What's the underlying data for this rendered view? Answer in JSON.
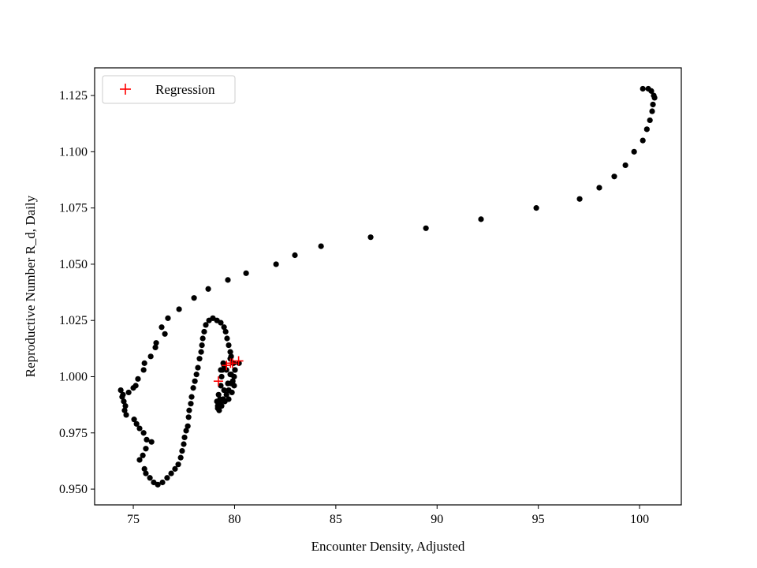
{
  "chart_data": {
    "type": "scatter",
    "title": "",
    "xlabel": "Encounter Density, Adjusted",
    "ylabel": "Reproductive Number R_d, Daily",
    "xlim": [
      73.09,
      102.06
    ],
    "ylim": [
      0.943,
      1.1373
    ],
    "xticks": [
      75,
      80,
      85,
      90,
      95,
      100
    ],
    "xtick_labels": [
      "75",
      "80",
      "85",
      "90",
      "95",
      "100"
    ],
    "yticks": [
      0.95,
      0.975,
      1.0,
      1.025,
      1.05,
      1.075,
      1.1,
      1.125
    ],
    "ytick_labels": [
      "0.950",
      "0.975",
      "1.000",
      "1.025",
      "1.050",
      "1.075",
      "1.100",
      "1.125"
    ],
    "grid": false,
    "legend": {
      "placement": "top-left",
      "entries": [
        "Regression"
      ]
    },
    "series": [
      {
        "name": "data",
        "marker": "circle",
        "color": "#000000",
        "points": [
          [
            100.16,
            1.128
          ],
          [
            100.43,
            1.128
          ],
          [
            100.58,
            1.127
          ],
          [
            100.7,
            1.125
          ],
          [
            100.74,
            1.124
          ],
          [
            100.66,
            1.121
          ],
          [
            100.62,
            1.118
          ],
          [
            100.51,
            1.114
          ],
          [
            100.36,
            1.11
          ],
          [
            100.16,
            1.105
          ],
          [
            99.73,
            1.1
          ],
          [
            99.3,
            1.094
          ],
          [
            98.75,
            1.089
          ],
          [
            98.01,
            1.084
          ],
          [
            97.04,
            1.079
          ],
          [
            94.9,
            1.075
          ],
          [
            92.17,
            1.07
          ],
          [
            89.45,
            1.066
          ],
          [
            86.72,
            1.062
          ],
          [
            84.27,
            1.058
          ],
          [
            82.98,
            1.054
          ],
          [
            82.05,
            1.05
          ],
          [
            80.57,
            1.046
          ],
          [
            79.67,
            1.043
          ],
          [
            78.7,
            1.039
          ],
          [
            78.0,
            1.035
          ],
          [
            77.26,
            1.03
          ],
          [
            76.71,
            1.026
          ],
          [
            76.4,
            1.022
          ],
          [
            76.56,
            1.019
          ],
          [
            76.13,
            1.015
          ],
          [
            76.09,
            1.013
          ],
          [
            75.86,
            1.009
          ],
          [
            75.55,
            1.006
          ],
          [
            75.51,
            1.003
          ],
          [
            75.23,
            0.999
          ],
          [
            75.12,
            0.996
          ],
          [
            75.0,
            0.995
          ],
          [
            74.77,
            0.993
          ],
          [
            74.49,
            0.992
          ],
          [
            74.38,
            0.994
          ],
          [
            74.45,
            0.991
          ],
          [
            74.53,
            0.989
          ],
          [
            74.61,
            0.987
          ],
          [
            74.57,
            0.985
          ],
          [
            74.65,
            0.983
          ],
          [
            75.04,
            0.981
          ],
          [
            75.16,
            0.979
          ],
          [
            75.31,
            0.977
          ],
          [
            75.51,
            0.975
          ],
          [
            75.66,
            0.972
          ],
          [
            75.9,
            0.971
          ],
          [
            75.62,
            0.968
          ],
          [
            75.47,
            0.965
          ],
          [
            75.31,
            0.963
          ],
          [
            75.55,
            0.959
          ],
          [
            75.62,
            0.957
          ],
          [
            75.82,
            0.955
          ],
          [
            76.01,
            0.953
          ],
          [
            76.21,
            0.952
          ],
          [
            76.44,
            0.953
          ],
          [
            76.67,
            0.955
          ],
          [
            76.87,
            0.957
          ],
          [
            77.06,
            0.959
          ],
          [
            77.22,
            0.961
          ],
          [
            77.34,
            0.964
          ],
          [
            77.41,
            0.967
          ],
          [
            77.49,
            0.97
          ],
          [
            77.53,
            0.973
          ],
          [
            77.61,
            0.976
          ],
          [
            77.69,
            0.978
          ],
          [
            77.73,
            0.982
          ],
          [
            77.76,
            0.985
          ],
          [
            77.84,
            0.988
          ],
          [
            77.88,
            0.991
          ],
          [
            77.96,
            0.995
          ],
          [
            78.04,
            0.998
          ],
          [
            78.12,
            1.001
          ],
          [
            78.19,
            1.004
          ],
          [
            78.27,
            1.008
          ],
          [
            78.35,
            1.011
          ],
          [
            78.39,
            1.014
          ],
          [
            78.43,
            1.017
          ],
          [
            78.5,
            1.02
          ],
          [
            78.58,
            1.023
          ],
          [
            78.74,
            1.025
          ],
          [
            78.93,
            1.026
          ],
          [
            79.13,
            1.025
          ],
          [
            79.32,
            1.024
          ],
          [
            79.48,
            1.022
          ],
          [
            79.56,
            1.02
          ],
          [
            79.63,
            1.017
          ],
          [
            79.71,
            1.014
          ],
          [
            79.79,
            1.011
          ],
          [
            79.83,
            1.009
          ],
          [
            79.95,
            1.006
          ],
          [
            80.02,
            1.003
          ],
          [
            79.98,
            1.0
          ],
          [
            79.83,
            0.997
          ],
          [
            79.71,
            0.994
          ],
          [
            79.6,
            0.992
          ],
          [
            79.44,
            0.99
          ],
          [
            79.28,
            0.988
          ],
          [
            79.17,
            0.986
          ],
          [
            79.13,
            0.989
          ],
          [
            79.21,
            0.992
          ],
          [
            79.32,
            0.996
          ],
          [
            79.36,
            1.0
          ],
          [
            79.4,
            1.003
          ],
          [
            79.44,
            1.006
          ],
          [
            79.6,
            1.003
          ],
          [
            79.79,
            1.001
          ],
          [
            79.91,
            0.998
          ],
          [
            79.98,
            0.996
          ],
          [
            79.87,
            0.993
          ],
          [
            79.71,
            0.99
          ],
          [
            79.52,
            0.989
          ],
          [
            79.36,
            0.987
          ],
          [
            79.24,
            0.985
          ],
          [
            79.17,
            0.987
          ],
          [
            79.28,
            0.99
          ],
          [
            79.48,
            0.994
          ],
          [
            79.67,
            0.997
          ],
          [
            79.83,
            1.001
          ],
          [
            80.02,
            1.003
          ],
          [
            80.22,
            1.006
          ],
          [
            79.79,
            1.008
          ],
          [
            79.48,
            1.005
          ],
          [
            79.32,
            1.003
          ]
        ]
      },
      {
        "name": "Regression",
        "marker": "plus",
        "color": "#ff0000",
        "points": [
          [
            79.2,
            0.998
          ],
          [
            79.6,
            1.005
          ],
          [
            79.8,
            1.006
          ],
          [
            80.2,
            1.007
          ],
          [
            79.9,
            1.006
          ]
        ]
      }
    ]
  }
}
